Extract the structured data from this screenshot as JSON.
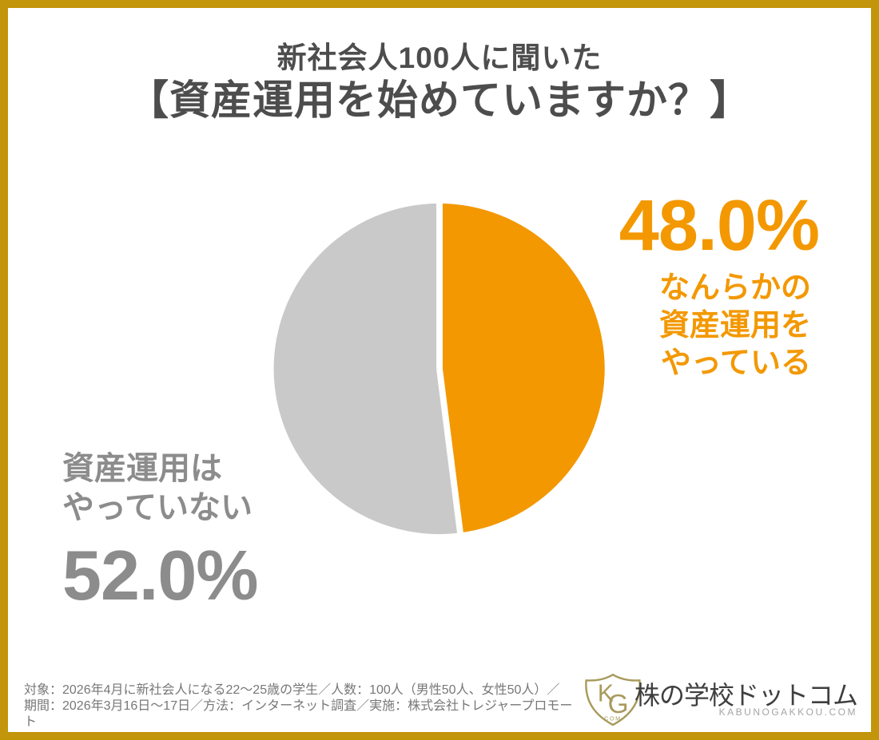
{
  "colors": {
    "accent_orange": "#F39800",
    "slice_gray": "#C9C9CA",
    "frame_gold": "#C2950B",
    "title_gray": "#4D4D4D",
    "label_gray": "#8C8C8C",
    "footer_gray": "#777777",
    "logo_gold": "#A89A5C"
  },
  "title": {
    "line1": "新社会人100人に聞いた",
    "line2": "【資産運用を始めていますか？】"
  },
  "chart_data": {
    "type": "pie",
    "title": "資産運用を始めていますか？",
    "start_angle_deg": 0,
    "direction": "clockwise",
    "legend_position": "none",
    "slices": [
      {
        "label": "なんらかの資産運用をやっている",
        "value": 48.0,
        "display": "48.0%",
        "color": "#F39800"
      },
      {
        "label": "資産運用はやっていない",
        "value": 52.0,
        "display": "52.0%",
        "color": "#C9C9CA"
      }
    ]
  },
  "labels": {
    "yes": {
      "line1": "なんらかの",
      "line2": "資産運用を",
      "line3": "やっている"
    },
    "no": {
      "line1": "資産運用は",
      "line2": "やっていない"
    }
  },
  "footer": {
    "line1": "対象：2026年4月に新社会人になる22〜25歳の学生／人数：100人（男性50人、女性50人）／",
    "line2": "期間：2026年3月16日〜17日／方法：インターネット調査／実施：株式会社トレジャープロモート"
  },
  "logo": {
    "shield_k": "K",
    "shield_g": "G",
    "shield_com": "COM",
    "name": "株の学校ドットコム",
    "domain": "KABUNOGAKKOU.COM"
  }
}
